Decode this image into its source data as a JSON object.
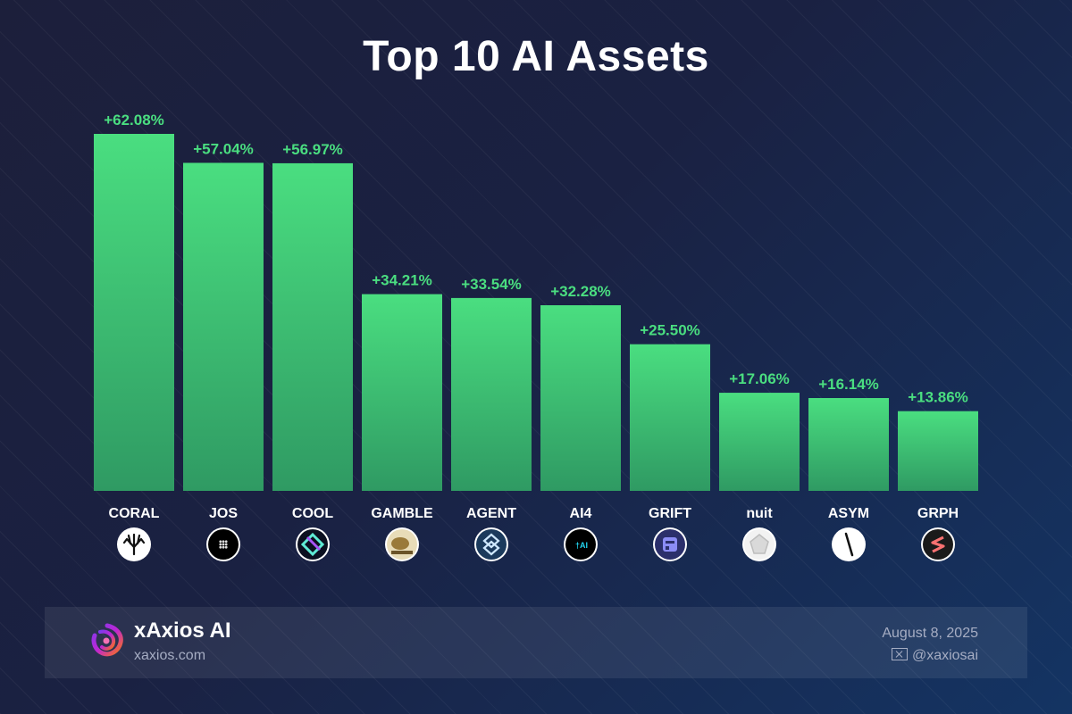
{
  "title": "Top 10 AI Assets",
  "chart_data": {
    "type": "bar",
    "title": "Top 10 AI Assets",
    "categories": [
      "CORAL",
      "JOS",
      "COOL",
      "GAMBLE",
      "AGENT",
      "AI4",
      "GRIFT",
      "nuit",
      "ASYM",
      "GRPH"
    ],
    "values": [
      62.08,
      57.04,
      56.97,
      34.21,
      33.54,
      32.28,
      25.5,
      17.06,
      16.14,
      13.86
    ],
    "labels": [
      "+62.08%",
      "+57.04%",
      "+56.97%",
      "+34.21%",
      "+33.54%",
      "+32.28%",
      "+25.50%",
      "+17.06%",
      "+16.14%",
      "+13.86%"
    ],
    "unit": "%",
    "xlabel": "",
    "ylabel": "",
    "grid": false,
    "icons": [
      "coral-icon",
      "jos-icon",
      "cool-icon",
      "gamble-icon",
      "agent-icon",
      "ai4-icon",
      "grift-icon",
      "nuit-icon",
      "asym-icon",
      "grph-icon"
    ],
    "bar_color_top": "#4ade80",
    "bar_color_bottom": "#2f9a63",
    "label_color": "#4ade80"
  },
  "footer": {
    "brand_name": "xAxios AI",
    "brand_url": "xaxios.com",
    "date": "August 8, 2025",
    "handle": "@xaxiosai"
  }
}
